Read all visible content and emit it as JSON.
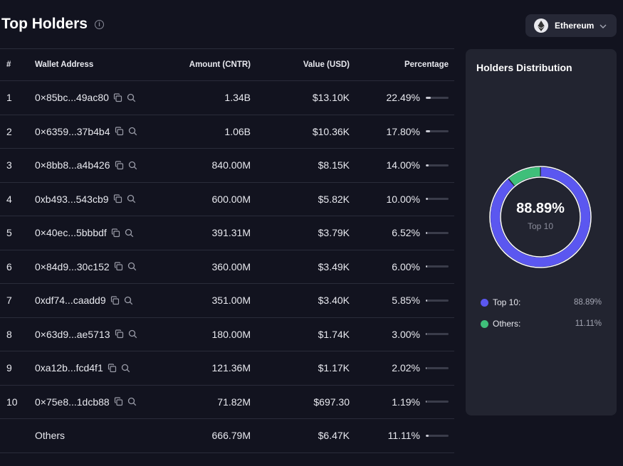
{
  "header": {
    "title": "Top Holders",
    "info_icon": "info-icon"
  },
  "chain_selector": {
    "selected": "Ethereum",
    "icon": "ethereum-icon"
  },
  "table": {
    "columns": {
      "rank": "#",
      "address": "Wallet Address",
      "amount": "Amount (CNTR)",
      "value": "Value (USD)",
      "percentage": "Percentage"
    },
    "rows": [
      {
        "rank": "1",
        "address": "0×85bc...49ac80",
        "amount": "1.34B",
        "value": "$13.10K",
        "percentage": "22.49%",
        "pct": 22.49
      },
      {
        "rank": "2",
        "address": "0×6359...37b4b4",
        "amount": "1.06B",
        "value": "$10.36K",
        "percentage": "17.80%",
        "pct": 17.8
      },
      {
        "rank": "3",
        "address": "0×8bb8...a4b426",
        "amount": "840.00M",
        "value": "$8.15K",
        "percentage": "14.00%",
        "pct": 14.0
      },
      {
        "rank": "4",
        "address": "0xb493...543cb9",
        "amount": "600.00M",
        "value": "$5.82K",
        "percentage": "10.00%",
        "pct": 10.0
      },
      {
        "rank": "5",
        "address": "0×40ec...5bbbdf",
        "amount": "391.31M",
        "value": "$3.79K",
        "percentage": "6.52%",
        "pct": 6.52
      },
      {
        "rank": "6",
        "address": "0×84d9...30c152",
        "amount": "360.00M",
        "value": "$3.49K",
        "percentage": "6.00%",
        "pct": 6.0
      },
      {
        "rank": "7",
        "address": "0xdf74...caadd9",
        "amount": "351.00M",
        "value": "$3.40K",
        "percentage": "5.85%",
        "pct": 5.85
      },
      {
        "rank": "8",
        "address": "0×63d9...ae5713",
        "amount": "180.00M",
        "value": "$1.74K",
        "percentage": "3.00%",
        "pct": 3.0
      },
      {
        "rank": "9",
        "address": "0xa12b...fcd4f1",
        "amount": "121.36M",
        "value": "$1.17K",
        "percentage": "2.02%",
        "pct": 2.02
      },
      {
        "rank": "10",
        "address": "0×75e8...1dcb88",
        "amount": "71.82M",
        "value": "$697.30",
        "percentage": "1.19%",
        "pct": 1.19
      },
      {
        "rank": "",
        "address": "Others",
        "amount": "666.79M",
        "value": "$6.47K",
        "percentage": "11.11%",
        "pct": 11.11
      }
    ]
  },
  "distribution": {
    "title": "Holders Distribution",
    "center_value": "88.89%",
    "center_label": "Top 10",
    "legend": [
      {
        "label": "Top 10:",
        "value": "88.89%",
        "pct": 88.89,
        "color": "#5b57f0"
      },
      {
        "label": "Others:",
        "value": "11.11%",
        "pct": 11.11,
        "color": "#3fbf7a"
      }
    ]
  },
  "colors": {
    "background": "#12131f",
    "card": "#222430",
    "accent_purple": "#5b57f0",
    "accent_green": "#3fbf7a"
  }
}
